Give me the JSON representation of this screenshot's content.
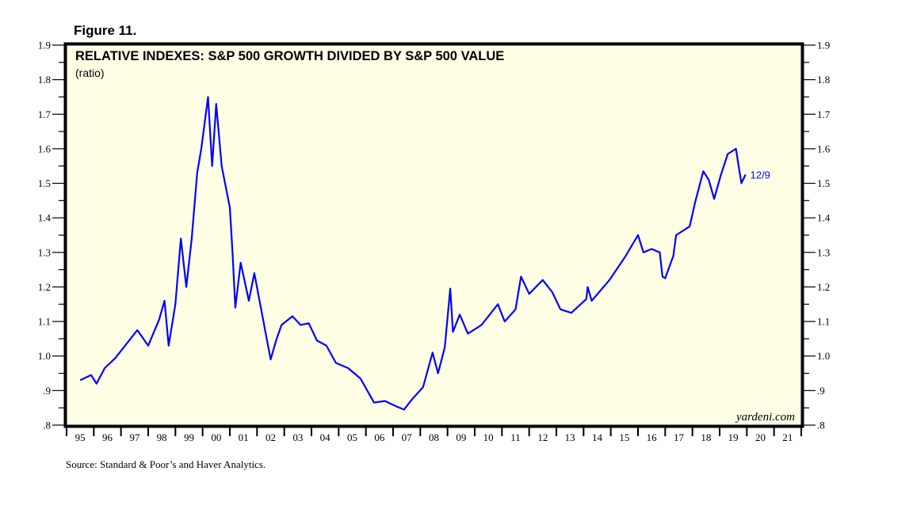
{
  "figure_label": "Figure 11.",
  "source_note": "Source: Standard & Poor’s and Haver Analytics.",
  "watermark": "yardeni.com",
  "colors": {
    "plot_background": "#ffffe6",
    "series_line": "#0000ff",
    "axis": "#000000"
  },
  "chart_data": {
    "type": "line",
    "title": "RELATIVE INDEXES: S&P 500 GROWTH DIVIDED BY S&P 500 VALUE",
    "subtitle": "(ratio)",
    "xlabel": "",
    "ylabel": "ratio",
    "xlim": [
      1995,
      2022
    ],
    "ylim": [
      0.8,
      1.9
    ],
    "grid": false,
    "legend": "none",
    "y_ticks": [
      {
        "value": 1.9,
        "label": "1.9"
      },
      {
        "value": 1.8,
        "label": "1.8"
      },
      {
        "value": 1.7,
        "label": "1.7"
      },
      {
        "value": 1.6,
        "label": "1.6"
      },
      {
        "value": 1.5,
        "label": "1.5"
      },
      {
        "value": 1.4,
        "label": "1.4"
      },
      {
        "value": 1.3,
        "label": "1.3"
      },
      {
        "value": 1.2,
        "label": "1.2"
      },
      {
        "value": 1.1,
        "label": "1.1"
      },
      {
        "value": 1.0,
        "label": "1.0"
      },
      {
        "value": 0.9,
        "label": ".9"
      },
      {
        "value": 0.8,
        "label": ".8"
      }
    ],
    "x_ticks": [
      "95",
      "96",
      "97",
      "98",
      "99",
      "00",
      "01",
      "02",
      "03",
      "04",
      "05",
      "06",
      "07",
      "08",
      "09",
      "10",
      "11",
      "12",
      "13",
      "14",
      "15",
      "16",
      "17",
      "18",
      "19",
      "20",
      "21"
    ],
    "end_annotation": "12/9",
    "series": [
      {
        "name": "S&P 500 Growth / S&P 500 Value",
        "x": [
          1995.5,
          1995.9,
          1996.1,
          1996.4,
          1996.8,
          1997.3,
          1997.6,
          1998.0,
          1998.4,
          1998.6,
          1998.75,
          1999.0,
          1999.2,
          1999.4,
          1999.6,
          1999.8,
          1999.95,
          2000.2,
          2000.35,
          2000.5,
          2000.7,
          2001.0,
          2001.1,
          2001.2,
          2001.4,
          2001.7,
          2001.9,
          2002.2,
          2002.5,
          2002.7,
          2002.9,
          2003.3,
          2003.6,
          2003.9,
          2004.2,
          2004.55,
          2004.9,
          2005.35,
          2005.8,
          2006.3,
          2006.7,
          2007.1,
          2007.4,
          2007.7,
          2008.1,
          2008.45,
          2008.65,
          2008.9,
          2009.1,
          2009.2,
          2009.45,
          2009.75,
          2010.25,
          2010.85,
          2011.1,
          2011.5,
          2011.7,
          2012.0,
          2012.5,
          2012.85,
          2013.15,
          2013.55,
          2014.1,
          2014.15,
          2014.3,
          2014.95,
          2015.55,
          2016.0,
          2016.2,
          2016.5,
          2016.8,
          2016.9,
          2017.0,
          2017.3,
          2017.4,
          2017.9,
          2018.1,
          2018.4,
          2018.6,
          2018.8,
          2019.05,
          2019.3,
          2019.6,
          2019.7,
          2019.8,
          2019.95
        ],
        "values": [
          0.93,
          0.945,
          0.92,
          0.965,
          0.995,
          1.045,
          1.075,
          1.03,
          1.105,
          1.16,
          1.03,
          1.15,
          1.34,
          1.2,
          1.34,
          1.53,
          1.6,
          1.75,
          1.55,
          1.73,
          1.55,
          1.43,
          1.3,
          1.14,
          1.27,
          1.16,
          1.24,
          1.115,
          0.99,
          1.045,
          1.09,
          1.115,
          1.09,
          1.095,
          1.045,
          1.03,
          0.98,
          0.965,
          0.935,
          0.865,
          0.87,
          0.855,
          0.845,
          0.875,
          0.91,
          1.01,
          0.95,
          1.025,
          1.195,
          1.07,
          1.12,
          1.065,
          1.09,
          1.15,
          1.1,
          1.135,
          1.23,
          1.18,
          1.22,
          1.185,
          1.135,
          1.125,
          1.165,
          1.2,
          1.16,
          1.22,
          1.29,
          1.35,
          1.3,
          1.31,
          1.3,
          1.23,
          1.225,
          1.29,
          1.35,
          1.375,
          1.445,
          1.535,
          1.51,
          1.455,
          1.525,
          1.585,
          1.6,
          1.55,
          1.5,
          1.525
        ]
      }
    ]
  }
}
